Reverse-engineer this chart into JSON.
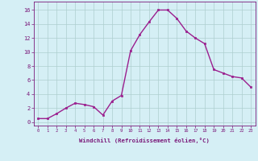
{
  "x": [
    0,
    1,
    2,
    3,
    4,
    5,
    6,
    7,
    8,
    9,
    10,
    11,
    12,
    13,
    14,
    15,
    16,
    17,
    18,
    19,
    20,
    21,
    22,
    23
  ],
  "y": [
    0.5,
    0.5,
    1.2,
    2.0,
    2.7,
    2.5,
    2.2,
    1.0,
    3.0,
    3.8,
    10.2,
    12.5,
    14.3,
    16.0,
    16.0,
    14.8,
    13.0,
    12.0,
    11.2,
    7.5,
    7.0,
    6.5,
    6.3,
    5.0
  ],
  "line_color": "#9b1f8e",
  "marker": "s",
  "marker_size": 1.8,
  "bg_color": "#d5eff5",
  "grid_color": "#aecfcf",
  "xlabel": "Windchill (Refroidissement éolien,°C)",
  "xlabel_color": "#7b1a7a",
  "ylabel_ticks": [
    0,
    2,
    4,
    6,
    8,
    10,
    12,
    14,
    16
  ],
  "xlim": [
    -0.5,
    23.5
  ],
  "ylim": [
    -0.5,
    17.2
  ],
  "tick_color": "#7b1a7a",
  "spine_color": "#7b1a7a",
  "line_width": 1.0,
  "xtick_fontsize": 4.0,
  "ytick_fontsize": 5.0,
  "xlabel_fontsize": 5.2
}
